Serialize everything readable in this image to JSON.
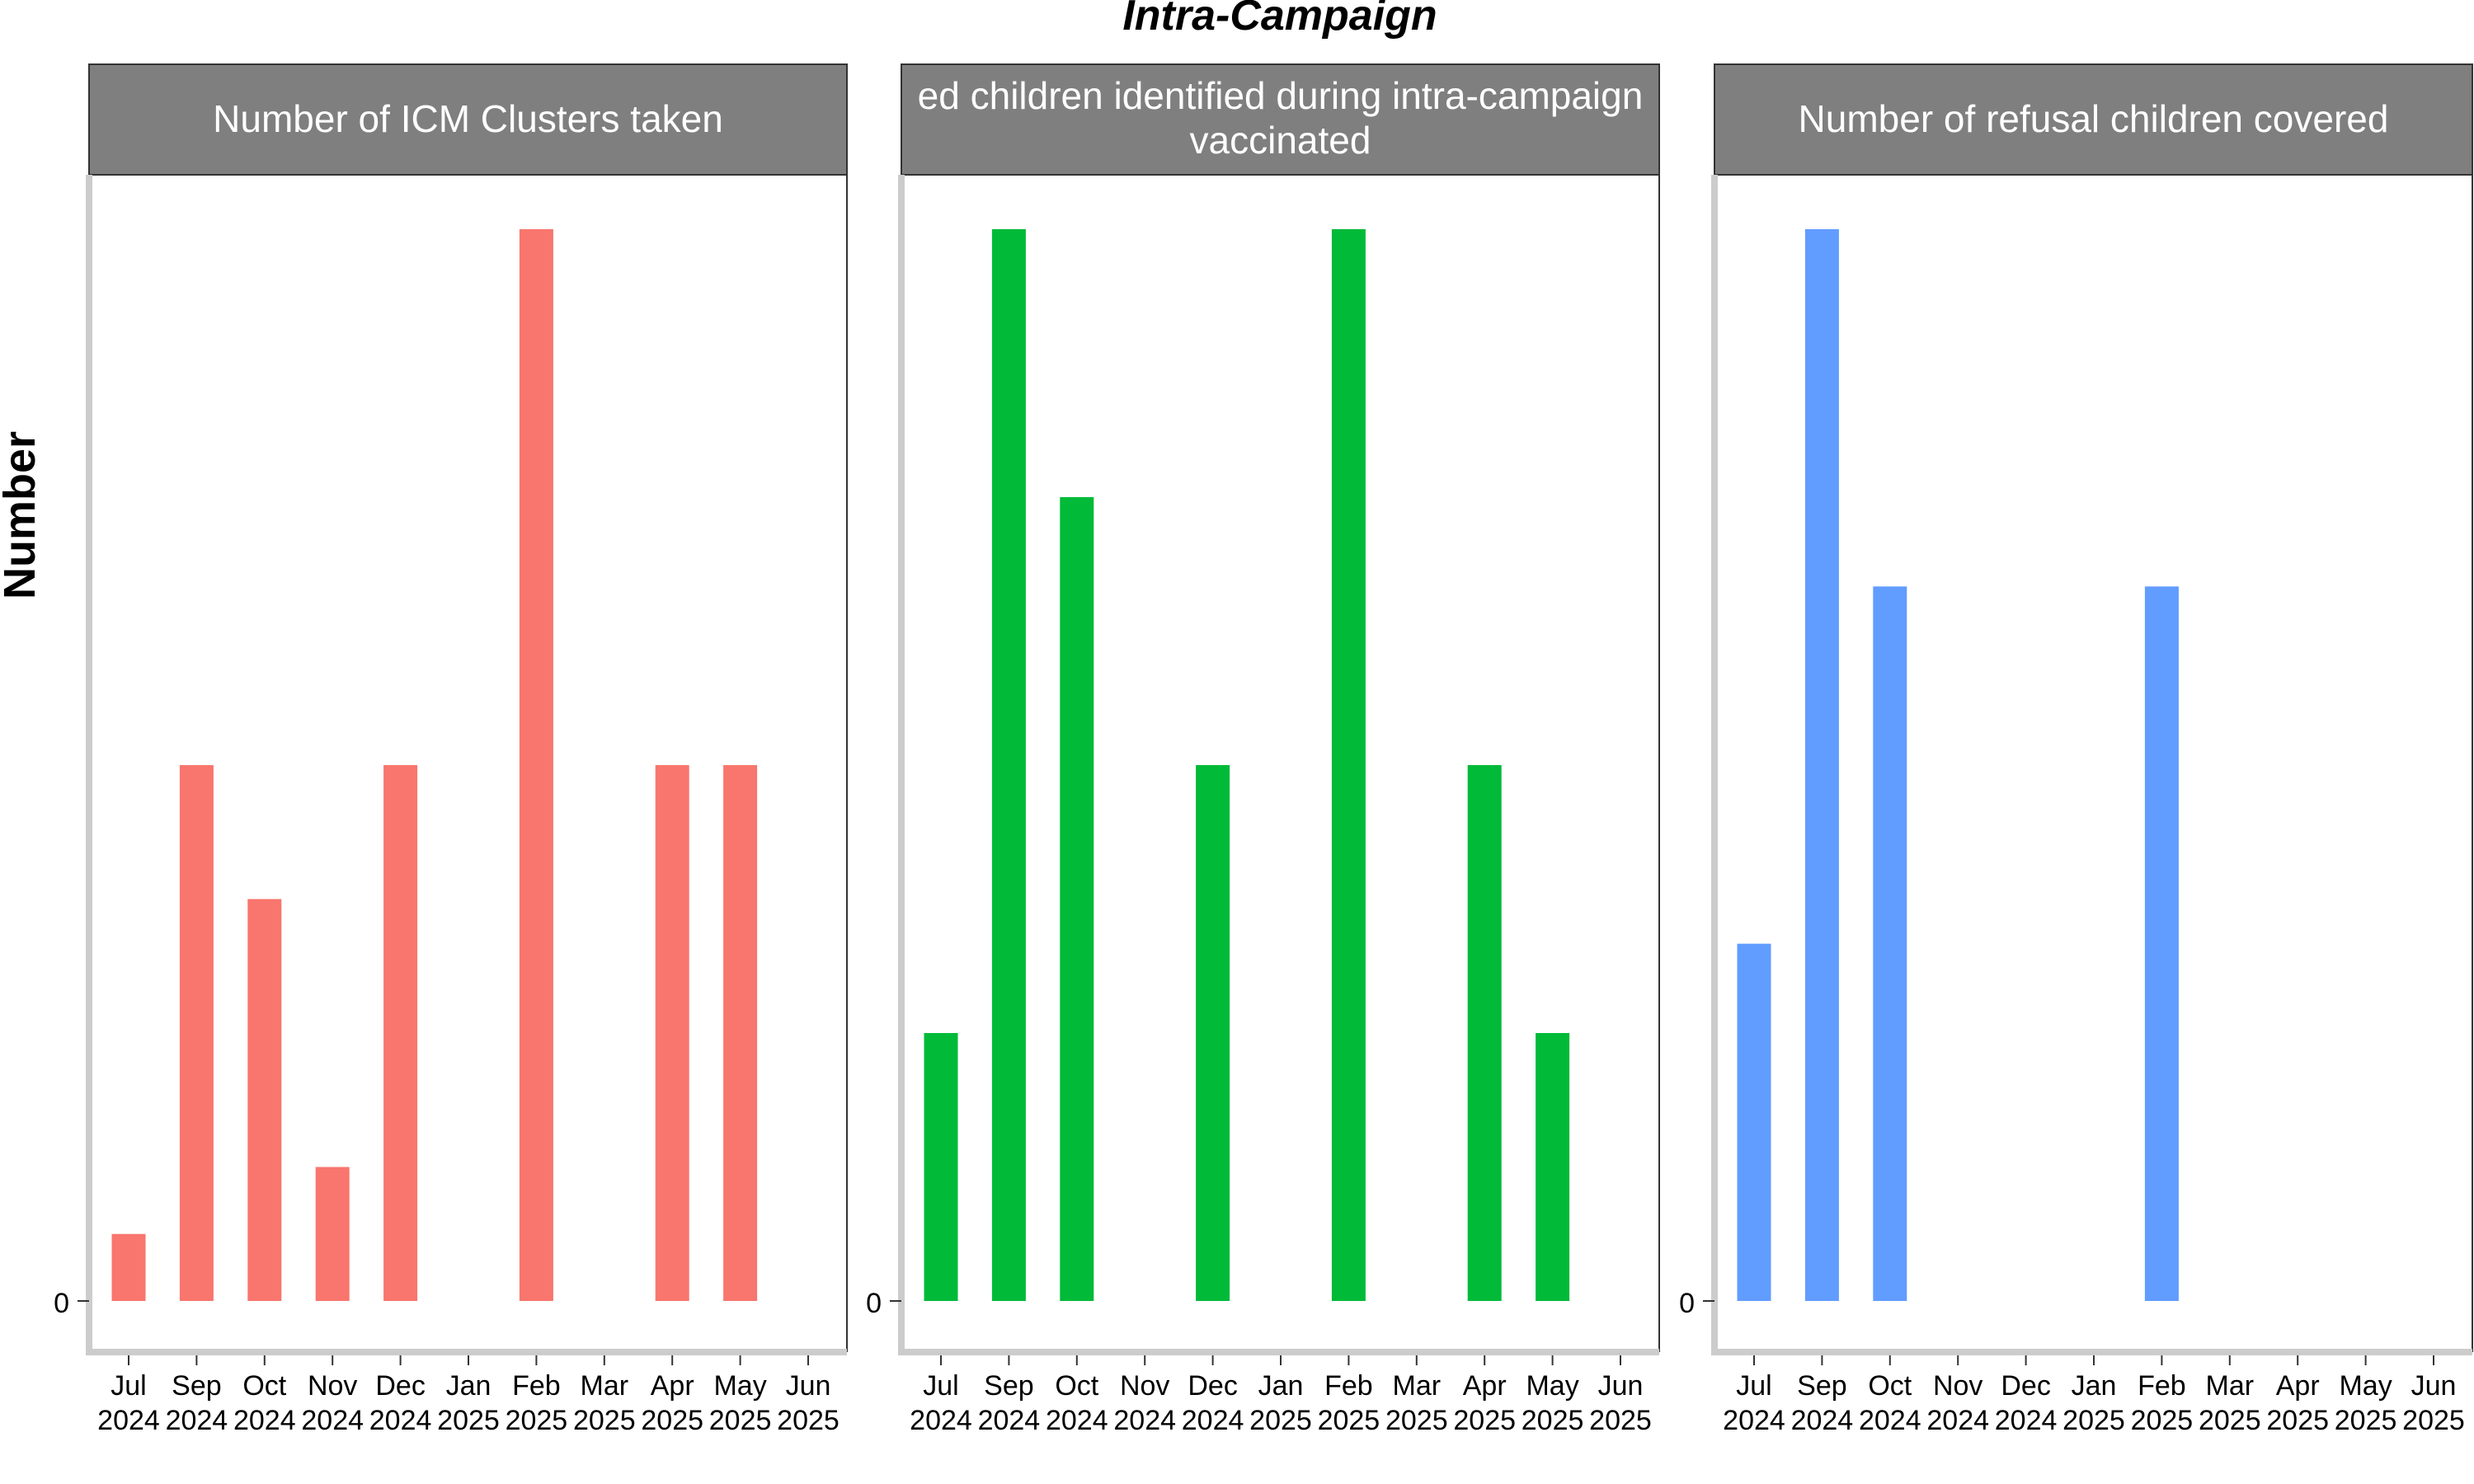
{
  "figure": {
    "title": "Intra-Campaign",
    "ylabel": "Number"
  },
  "colors": {
    "strip_bg": "#7f7f7f",
    "strip_text": "#ffffff",
    "axis_line": "#cccccc",
    "tick_text": "#000000"
  },
  "chart_data": [
    {
      "type": "bar",
      "title": "Number of ICM Clusters taken",
      "color": "#F8766D",
      "categories": [
        "Jul\n2024",
        "Sep\n2024",
        "Oct\n2024",
        "Nov\n2024",
        "Dec\n2024",
        "Jan\n2025",
        "Feb\n2025",
        "Mar\n2025",
        "Apr\n2025",
        "May\n2025",
        "Jun\n2025"
      ],
      "values": [
        1,
        8,
        6,
        2,
        8,
        0,
        16,
        0,
        8,
        8,
        0
      ],
      "yticks": [
        "0"
      ],
      "ylim": [
        -0.75,
        16.8
      ],
      "xlabel": "",
      "ylabel": "Number"
    },
    {
      "type": "bar",
      "title": "Number of refused children identified during intra-campaign vaccinated",
      "title_lines": [
        "ed children identified during intra-campaign",
        "vaccinated"
      ],
      "color": "#00BA38",
      "categories": [
        "Jul\n2024",
        "Sep\n2024",
        "Oct\n2024",
        "Nov\n2024",
        "Dec\n2024",
        "Jan\n2025",
        "Feb\n2025",
        "Mar\n2025",
        "Apr\n2025",
        "May\n2025",
        "Jun\n2025"
      ],
      "values": [
        3,
        12,
        9,
        0,
        6,
        0,
        12,
        0,
        6,
        3,
        0
      ],
      "yticks": [
        "0"
      ],
      "ylim": [
        -0.56,
        12.6
      ],
      "xlabel": "",
      "ylabel": "Number"
    },
    {
      "type": "bar",
      "title": "Number of refusal children covered",
      "color": "#619CFF",
      "categories": [
        "Jul\n2024",
        "Sep\n2024",
        "Oct\n2024",
        "Nov\n2024",
        "Dec\n2024",
        "Jan\n2025",
        "Feb\n2025",
        "Mar\n2025",
        "Apr\n2025",
        "May\n2025",
        "Jun\n2025"
      ],
      "values": [
        2,
        6,
        4,
        0,
        0,
        0,
        4,
        0,
        0,
        0,
        0
      ],
      "yticks": [
        "0"
      ],
      "ylim": [
        -0.28,
        6.3
      ],
      "xlabel": "",
      "ylabel": "Number"
    }
  ]
}
